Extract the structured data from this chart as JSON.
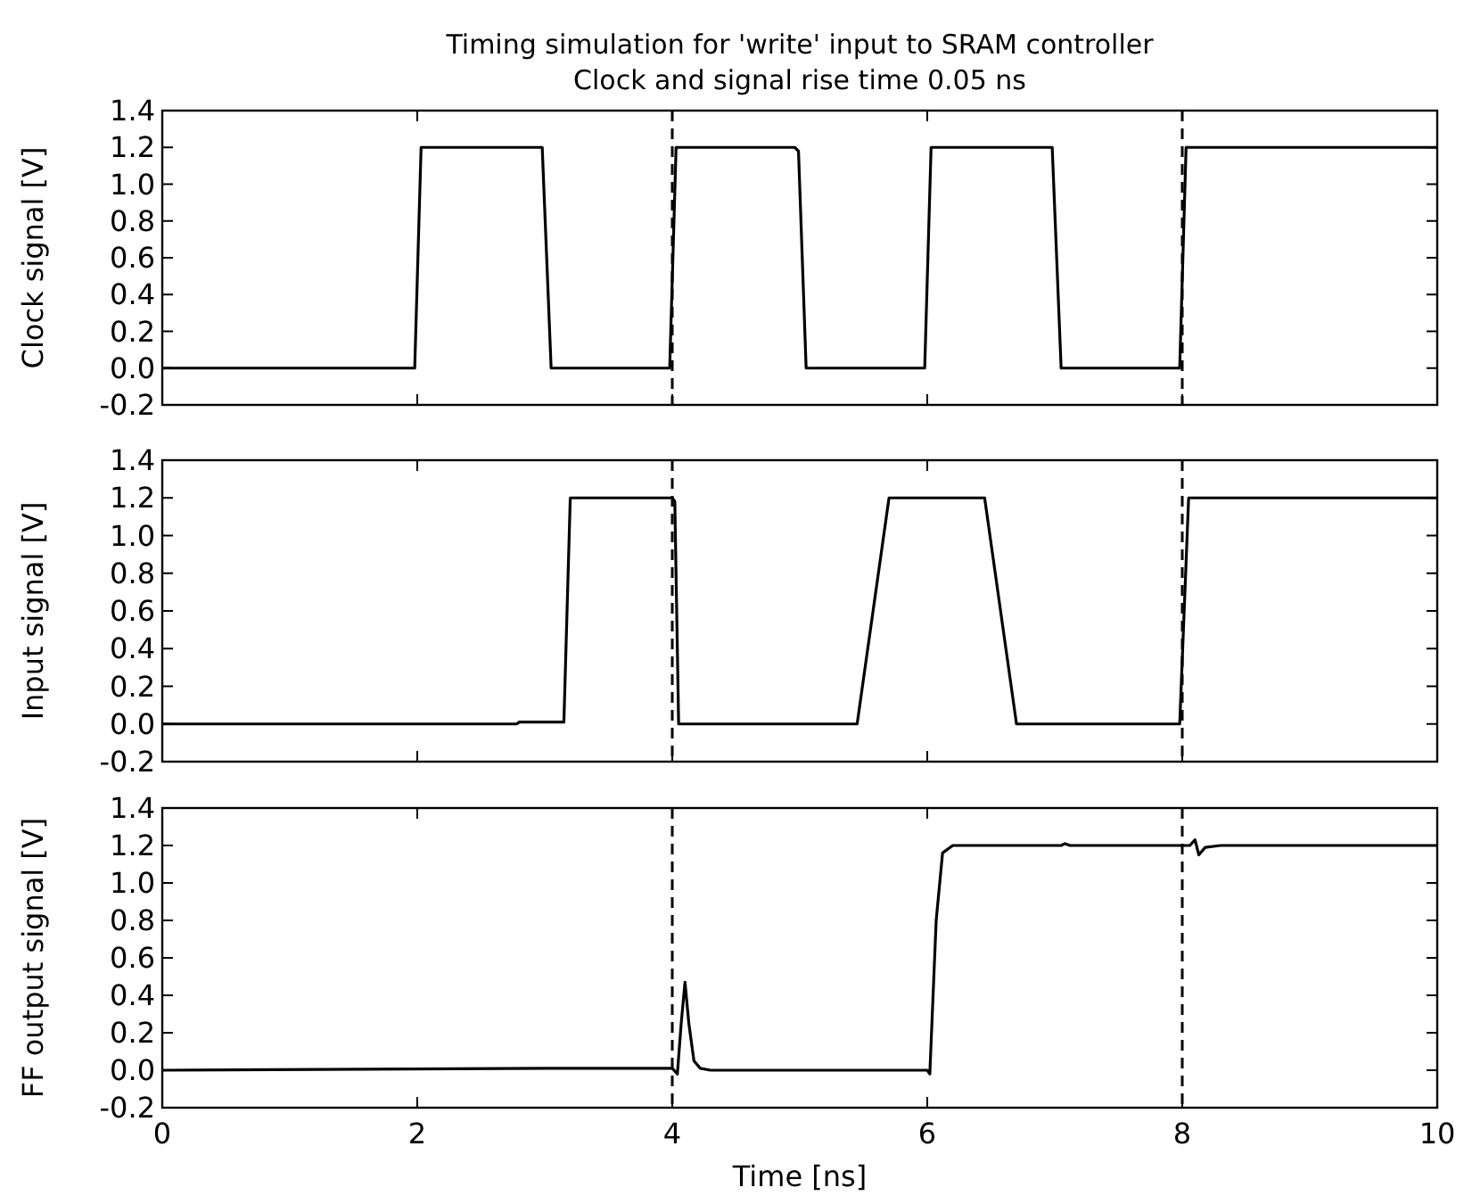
{
  "chart_data": [
    {
      "type": "line",
      "title": "Timing simulation for 'write' input to SRAM controller",
      "subtitle": "Clock and signal rise time 0.05 ns",
      "ylabel": "Clock signal [V]",
      "tick_labels": "y",
      "line_style": "solid",
      "series": [
        {
          "color": "#000000",
          "x": [
            0,
            1.98,
            2.03,
            2.98,
            3.05,
            3.98,
            4.03,
            4.96,
            4.99,
            5.05,
            5.98,
            6.03,
            6.98,
            7.05,
            7.98,
            8.03,
            10
          ],
          "values": [
            0,
            0,
            1.2,
            1.2,
            0,
            0,
            1.2,
            1.2,
            1.18,
            0,
            0,
            1.2,
            1.2,
            0,
            0,
            1.2,
            1.2
          ]
        }
      ],
      "xlim": [
        0,
        10
      ],
      "xticks": [
        {
          "value": 0,
          "label": null
        },
        {
          "value": 2,
          "label": null
        },
        {
          "value": 4,
          "label": null
        },
        {
          "value": 6,
          "label": null
        },
        {
          "value": 8,
          "label": null
        },
        {
          "value": 10,
          "label": null
        }
      ],
      "ylim": [
        -0.2,
        1.4
      ],
      "yticks": [
        {
          "value": -0.2,
          "label": "-0.2"
        },
        {
          "value": 0,
          "label": "0.0"
        },
        {
          "value": 0.2,
          "label": "0.2"
        },
        {
          "value": 0.4,
          "label": "0.4"
        },
        {
          "value": 0.6,
          "label": "0.6"
        },
        {
          "value": 0.8,
          "label": "0.8"
        },
        {
          "value": 1,
          "label": "1.0"
        },
        {
          "value": 1.2,
          "label": "1.2"
        },
        {
          "value": 1.4,
          "label": "1.4"
        }
      ],
      "ref_lines": [
        {
          "axis": "x",
          "value": 4,
          "color": "#000000",
          "line_style": "dashed"
        },
        {
          "axis": "x",
          "value": 8,
          "color": "#000000",
          "line_style": "dashed"
        }
      ]
    },
    {
      "type": "line",
      "ylabel": "Input signal [V]",
      "tick_labels": "y",
      "line_style": "solid",
      "series": [
        {
          "color": "#000000",
          "x": [
            0,
            2.78,
            2.8,
            3.15,
            3.2,
            4.0,
            4.02,
            4.05,
            5.45,
            5.7,
            6.45,
            6.7,
            7.98,
            8.05,
            10
          ],
          "values": [
            0,
            0,
            0.01,
            0.01,
            1.2,
            1.2,
            1.18,
            0,
            0,
            1.2,
            1.2,
            0,
            0,
            1.2,
            1.2
          ]
        }
      ],
      "xlim": [
        0,
        10
      ],
      "xticks": [
        {
          "value": 0,
          "label": null
        },
        {
          "value": 2,
          "label": null
        },
        {
          "value": 4,
          "label": null
        },
        {
          "value": 6,
          "label": null
        },
        {
          "value": 8,
          "label": null
        },
        {
          "value": 10,
          "label": null
        }
      ],
      "ylim": [
        -0.2,
        1.4
      ],
      "yticks": [
        {
          "value": -0.2,
          "label": "-0.2"
        },
        {
          "value": 0,
          "label": "0.0"
        },
        {
          "value": 0.2,
          "label": "0.2"
        },
        {
          "value": 0.4,
          "label": "0.4"
        },
        {
          "value": 0.6,
          "label": "0.6"
        },
        {
          "value": 0.8,
          "label": "0.8"
        },
        {
          "value": 1,
          "label": "1.0"
        },
        {
          "value": 1.2,
          "label": "1.2"
        },
        {
          "value": 1.4,
          "label": "1.4"
        }
      ],
      "ref_lines": [
        {
          "axis": "x",
          "value": 4,
          "color": "#000000",
          "line_style": "dashed"
        },
        {
          "axis": "x",
          "value": 8,
          "color": "#000000",
          "line_style": "dashed"
        }
      ]
    },
    {
      "type": "line",
      "xlabel": "Time [ns]",
      "ylabel": "FF output signal [V]",
      "line_style": "solid",
      "series": [
        {
          "color": "#000000",
          "x": [
            0,
            3.0,
            4.0,
            4.04,
            4.07,
            4.1,
            4.13,
            4.17,
            4.22,
            4.3,
            6.0,
            6.02,
            6.07,
            6.12,
            6.2,
            7.05,
            7.08,
            7.12,
            8.06,
            8.1,
            8.13,
            8.18,
            8.3,
            10
          ],
          "values": [
            0,
            0.01,
            0.01,
            -0.02,
            0.25,
            0.47,
            0.25,
            0.05,
            0.01,
            0,
            0,
            -0.02,
            0.8,
            1.16,
            1.2,
            1.2,
            1.21,
            1.2,
            1.2,
            1.23,
            1.15,
            1.19,
            1.2,
            1.2
          ]
        }
      ],
      "xlim": [
        0,
        10
      ],
      "xticks": [
        0,
        2,
        4,
        6,
        8,
        10
      ],
      "ylim": [
        -0.2,
        1.4
      ],
      "yticks": [
        {
          "value": -0.2,
          "label": "-0.2"
        },
        {
          "value": 0,
          "label": "0.0"
        },
        {
          "value": 0.2,
          "label": "0.2"
        },
        {
          "value": 0.4,
          "label": "0.4"
        },
        {
          "value": 0.6,
          "label": "0.6"
        },
        {
          "value": 0.8,
          "label": "0.8"
        },
        {
          "value": 1,
          "label": "1.0"
        },
        {
          "value": 1.2,
          "label": "1.2"
        },
        {
          "value": 1.4,
          "label": "1.4"
        }
      ],
      "ref_lines": [
        {
          "axis": "x",
          "value": 4,
          "color": "#000000",
          "line_style": "dashed"
        },
        {
          "axis": "x",
          "value": 8,
          "color": "#000000",
          "line_style": "dashed"
        }
      ]
    }
  ]
}
